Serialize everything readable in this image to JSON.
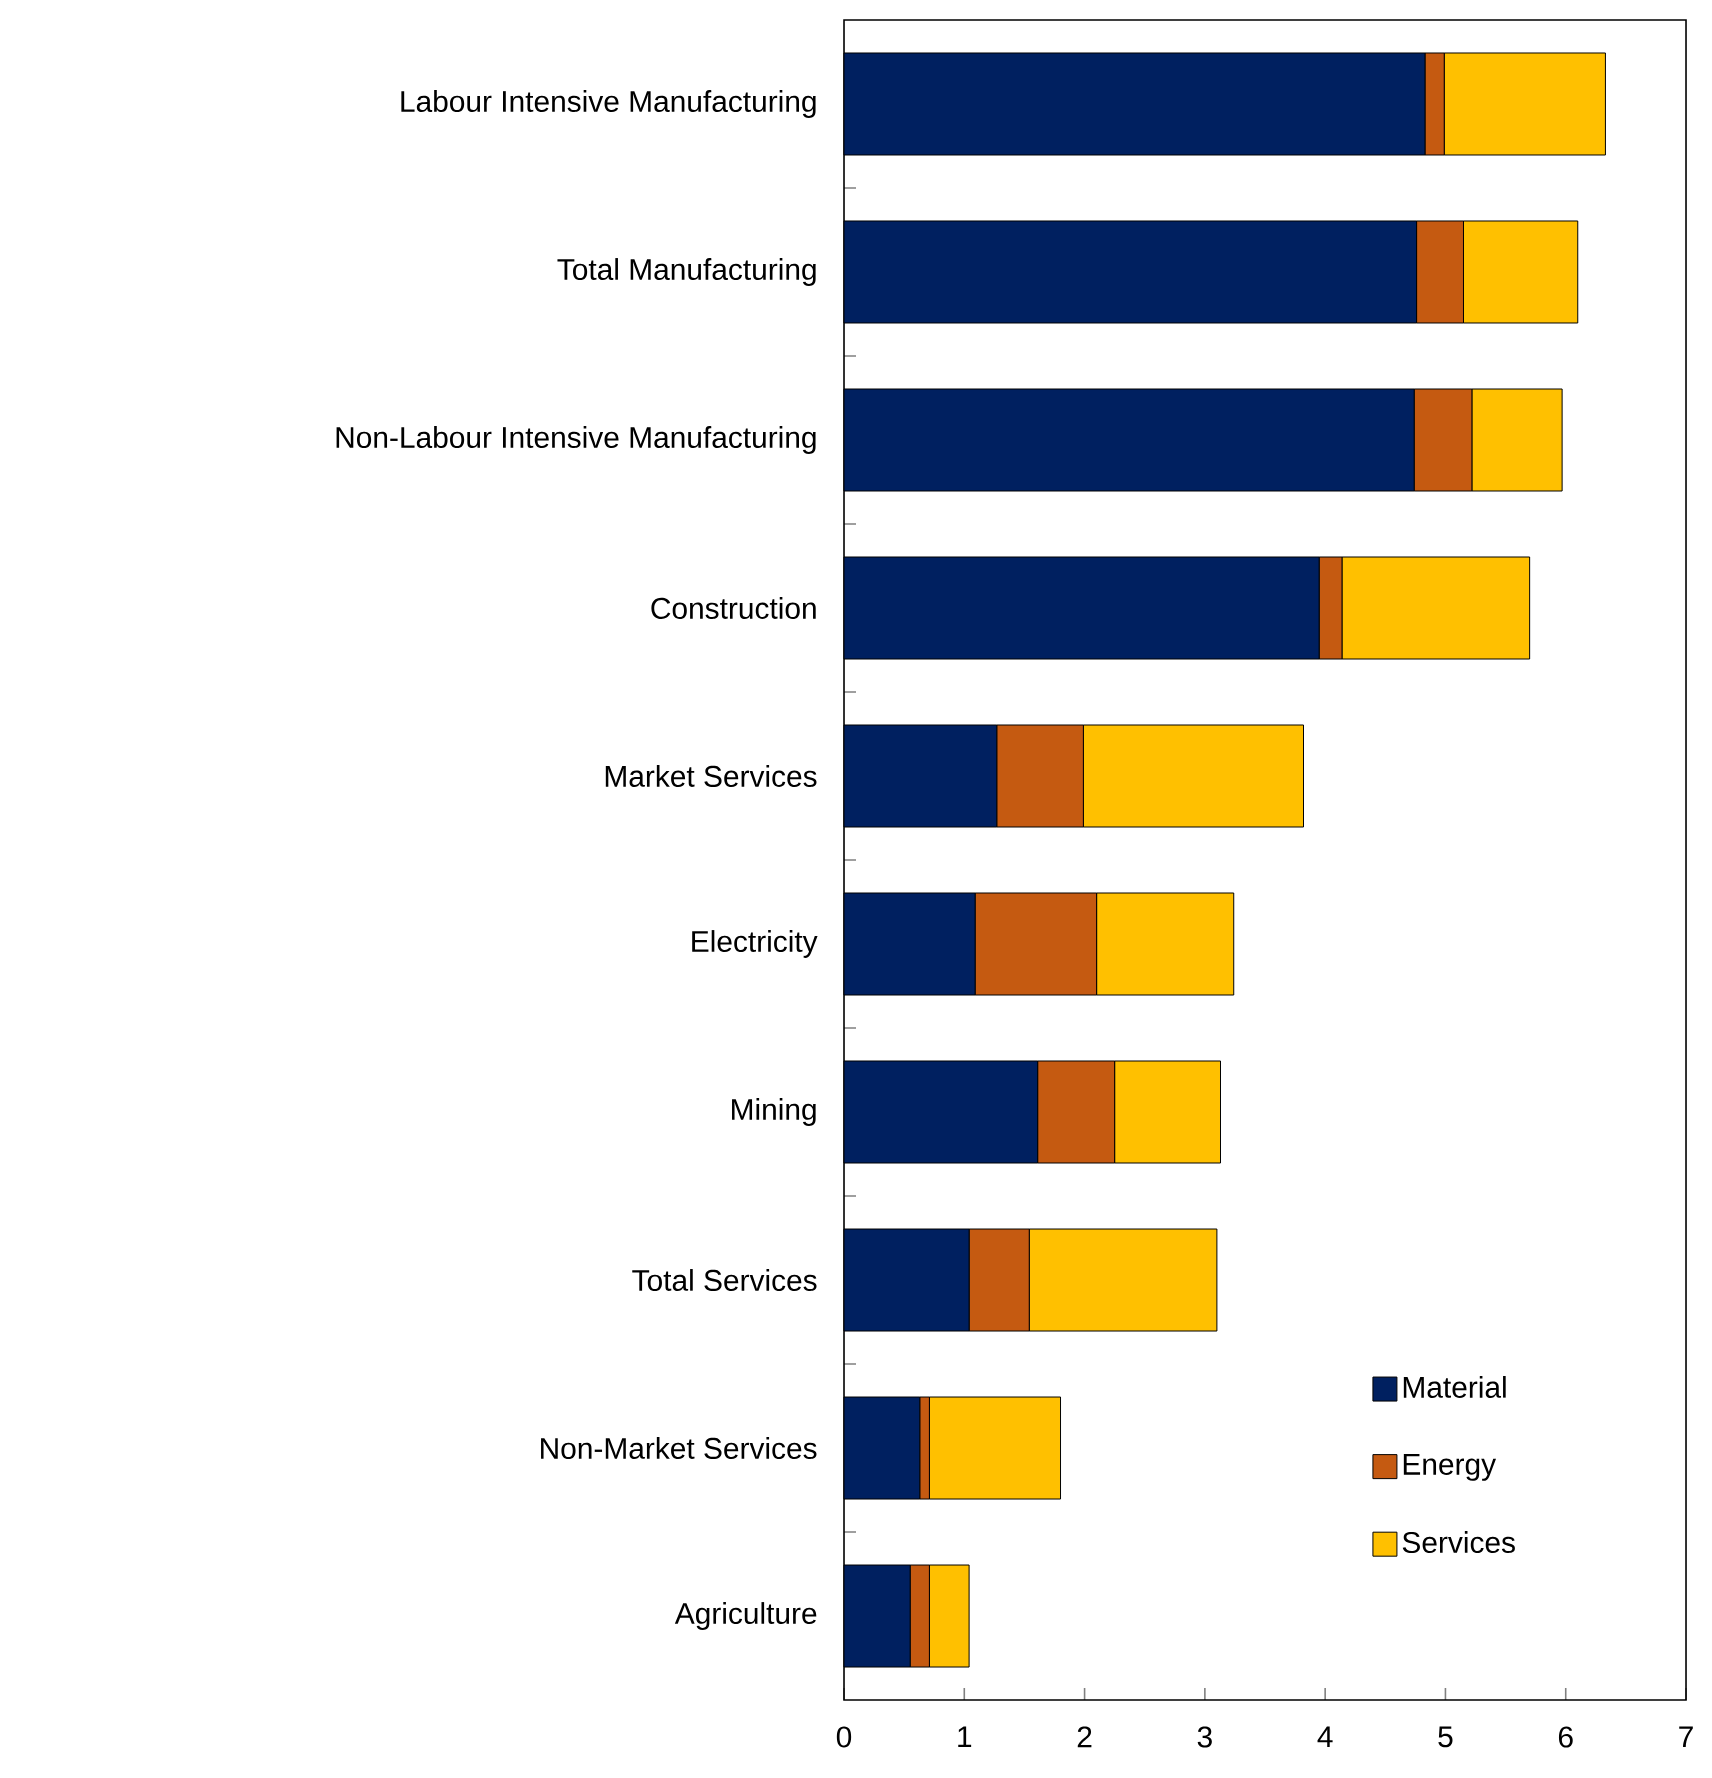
{
  "chart_data": {
    "type": "bar",
    "orientation": "horizontal",
    "stacked": true,
    "categories": [
      "Labour Intensive Manufacturing",
      "Total Manufacturing",
      "Non-Labour Intensive Manufacturing",
      "Construction",
      "Market Services",
      "Electricity",
      "Mining",
      "Total Services",
      "Non-Market Services",
      "Agriculture"
    ],
    "series": [
      {
        "name": "Material",
        "color": "#002060",
        "values": [
          4.83,
          4.76,
          4.74,
          3.95,
          1.27,
          1.09,
          1.61,
          1.04,
          0.63,
          0.55
        ]
      },
      {
        "name": "Energy",
        "color": "#c55a11",
        "values": [
          0.16,
          0.39,
          0.48,
          0.19,
          0.72,
          1.01,
          0.64,
          0.5,
          0.08,
          0.16
        ]
      },
      {
        "name": "Services",
        "color": "#ffc000",
        "values": [
          1.34,
          0.95,
          0.75,
          1.56,
          1.83,
          1.14,
          0.88,
          1.56,
          1.09,
          0.33
        ]
      }
    ],
    "xlim": [
      0,
      7
    ],
    "xticks": [
      0,
      1,
      2,
      3,
      4,
      5,
      6,
      7
    ],
    "legend": "bottom right"
  }
}
